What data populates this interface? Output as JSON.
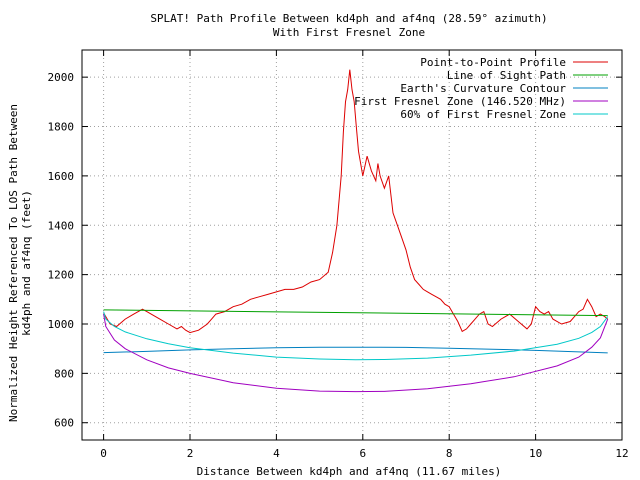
{
  "chart_data": {
    "type": "line",
    "title": "SPLAT! Path Profile Between kd4ph and af4nq (28.59° azimuth)",
    "subtitle": "With First Fresnel Zone",
    "xlabel": "Distance Between kd4ph and af4nq (11.67 miles)",
    "ylabel_line1": "Normalized Height Referenced To LOS Path Between",
    "ylabel_line2": "kd4ph and af4nq (feet)",
    "xlim": [
      -0.5,
      12
    ],
    "ylim": [
      530,
      2110
    ],
    "xticks": [
      "0",
      "2",
      "4",
      "6",
      "8",
      "10",
      "12"
    ],
    "yticks": [
      "600",
      "800",
      "1000",
      "1200",
      "1400",
      "1600",
      "1800",
      "2000"
    ],
    "grid": true,
    "legend_position": "top-right",
    "series": [
      {
        "name": "Point-to-Point Profile",
        "color": "#dd0000",
        "x": [
          0,
          0.15,
          0.3,
          0.5,
          0.7,
          0.9,
          1.0,
          1.1,
          1.3,
          1.5,
          1.7,
          1.8,
          1.9,
          2.0,
          2.2,
          2.4,
          2.5,
          2.6,
          2.8,
          3.0,
          3.2,
          3.4,
          3.6,
          3.8,
          4.0,
          4.2,
          4.4,
          4.6,
          4.8,
          5.0,
          5.2,
          5.3,
          5.4,
          5.5,
          5.55,
          5.6,
          5.65,
          5.7,
          5.75,
          5.8,
          5.85,
          5.9,
          6.0,
          6.1,
          6.2,
          6.3,
          6.35,
          6.4,
          6.5,
          6.6,
          6.7,
          6.8,
          6.9,
          7.0,
          7.1,
          7.2,
          7.3,
          7.4,
          7.5,
          7.6,
          7.7,
          7.8,
          7.9,
          8.0,
          8.1,
          8.2,
          8.3,
          8.4,
          8.5,
          8.6,
          8.7,
          8.8,
          8.9,
          9.0,
          9.2,
          9.4,
          9.6,
          9.8,
          9.9,
          10.0,
          10.1,
          10.2,
          10.3,
          10.4,
          10.6,
          10.8,
          11.0,
          11.1,
          11.2,
          11.3,
          11.4,
          11.5,
          11.6,
          11.67
        ],
        "values": [
          1045,
          1000,
          990,
          1020,
          1040,
          1060,
          1050,
          1040,
          1020,
          1000,
          980,
          990,
          975,
          965,
          975,
          1000,
          1020,
          1040,
          1050,
          1070,
          1080,
          1100,
          1110,
          1120,
          1130,
          1140,
          1140,
          1150,
          1170,
          1180,
          1210,
          1290,
          1400,
          1600,
          1780,
          1900,
          1950,
          2030,
          1950,
          1900,
          1800,
          1700,
          1600,
          1680,
          1620,
          1580,
          1650,
          1600,
          1550,
          1600,
          1450,
          1400,
          1350,
          1300,
          1230,
          1180,
          1160,
          1140,
          1130,
          1120,
          1110,
          1100,
          1080,
          1070,
          1040,
          1010,
          970,
          980,
          1000,
          1020,
          1040,
          1050,
          1000,
          990,
          1020,
          1040,
          1010,
          980,
          1000,
          1070,
          1050,
          1040,
          1050,
          1020,
          1000,
          1010,
          1050,
          1060,
          1100,
          1070,
          1030,
          1040,
          1030,
          1020
        ]
      },
      {
        "name": "Line of Sight Path",
        "color": "#00a000",
        "x": [
          0,
          11.67
        ],
        "values": [
          1057,
          1034
        ]
      },
      {
        "name": "Earth's Curvature Contour",
        "color": "#0080c0",
        "x": [
          0,
          1.0,
          2.0,
          3.0,
          4.0,
          5.0,
          5.835,
          7.0,
          8.0,
          9.0,
          10.0,
          11.0,
          11.67
        ],
        "values": [
          884,
          889,
          895,
          900,
          904,
          906,
          906,
          905,
          902,
          898,
          893,
          887,
          883
        ]
      },
      {
        "name": "First Fresnel Zone (146.520 MHz)",
        "color": "#a000c0",
        "x": [
          0,
          0.05,
          0.25,
          0.5,
          1.0,
          1.5,
          2.0,
          3.0,
          4.0,
          5.0,
          5.835,
          6.5,
          7.5,
          8.5,
          9.5,
          10.5,
          11.0,
          11.3,
          11.5,
          11.67
        ],
        "values": [
          1040,
          990,
          935,
          900,
          855,
          822,
          800,
          762,
          740,
          728,
          726,
          727,
          738,
          758,
          786,
          830,
          866,
          906,
          944,
          1020
        ]
      },
      {
        "name": "60% of First Fresnel Zone",
        "color": "#00c8c8",
        "x": [
          0,
          0.05,
          0.25,
          0.5,
          1.0,
          1.5,
          2.0,
          3.0,
          4.0,
          5.0,
          5.835,
          6.5,
          7.5,
          8.5,
          9.5,
          10.5,
          11.0,
          11.3,
          11.5,
          11.67
        ],
        "values": [
          1050,
          1020,
          990,
          968,
          940,
          920,
          904,
          882,
          866,
          858,
          855,
          856,
          862,
          874,
          890,
          918,
          942,
          966,
          990,
          1030
        ]
      }
    ]
  }
}
